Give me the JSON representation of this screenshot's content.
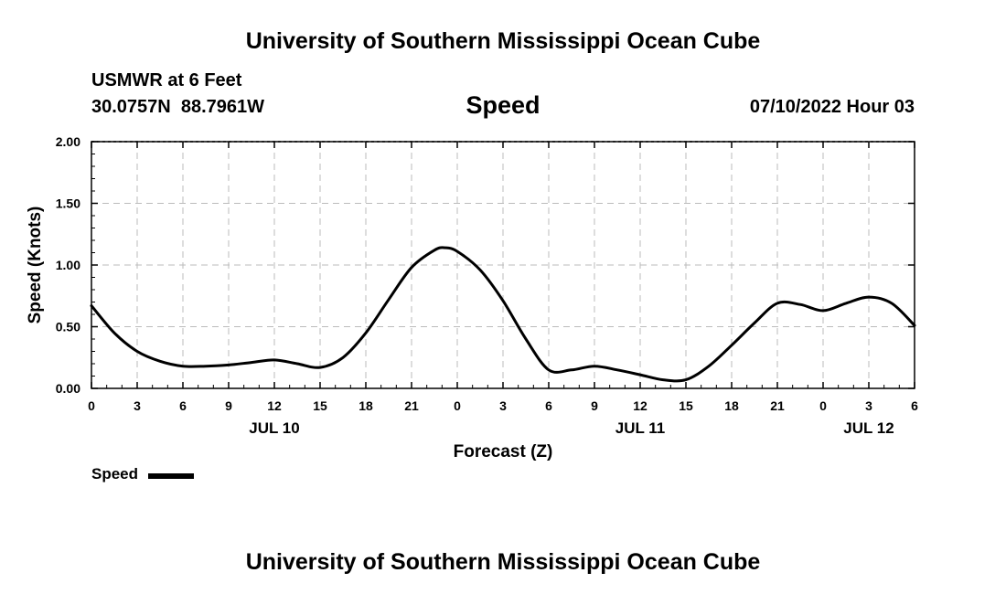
{
  "page": {
    "top_title": "University of Southern Mississippi Ocean Cube",
    "bottom_title": "University of Southern Mississippi Ocean Cube",
    "station": "USMWR at 6 Feet",
    "coords": "30.0757N  88.7961W",
    "datetime": "07/10/2022 Hour 03"
  },
  "chart_data": {
    "type": "line",
    "title": "Speed",
    "xlabel": "Forecast (Z)",
    "ylabel": "Speed (Knots)",
    "x_unit": "forecast hour from 2022-07-10 00Z",
    "xlim": [
      0,
      54
    ],
    "ylim": [
      0,
      2
    ],
    "y_ticks": [
      "0.00",
      "0.50",
      "1.00",
      "1.50",
      "2.00"
    ],
    "y_tick_values": [
      0,
      0.5,
      1,
      1.5,
      2
    ],
    "x_ticks": [
      "0",
      "3",
      "6",
      "9",
      "12",
      "15",
      "18",
      "21",
      "0",
      "3",
      "6",
      "9",
      "12",
      "15",
      "18",
      "21",
      "0",
      "3",
      "6"
    ],
    "x_tick_values": [
      0,
      3,
      6,
      9,
      12,
      15,
      18,
      21,
      24,
      27,
      30,
      33,
      36,
      39,
      42,
      45,
      48,
      51,
      54
    ],
    "date_labels": [
      {
        "label": "JUL 10",
        "x": 12
      },
      {
        "label": "JUL 11",
        "x": 36
      },
      {
        "label": "JUL 12",
        "x": 51
      }
    ],
    "grid": true,
    "legend": {
      "label": "Speed",
      "position": "bottom-left"
    },
    "series": [
      {
        "name": "Speed",
        "color": "#000000",
        "x": [
          0,
          1.5,
          3,
          4.5,
          6,
          7.5,
          9,
          10.5,
          12,
          13.5,
          15,
          16.5,
          18,
          19.5,
          21,
          22.5,
          23.2,
          24,
          25.5,
          27,
          28.5,
          30,
          31.5,
          33,
          34.5,
          36,
          37.5,
          39,
          40.5,
          42,
          43.5,
          45,
          46.5,
          48,
          49.5,
          51,
          52.5,
          54
        ],
        "values": [
          0.67,
          0.45,
          0.3,
          0.22,
          0.18,
          0.18,
          0.19,
          0.21,
          0.23,
          0.2,
          0.17,
          0.25,
          0.45,
          0.72,
          0.98,
          1.12,
          1.14,
          1.11,
          0.96,
          0.71,
          0.4,
          0.15,
          0.15,
          0.18,
          0.15,
          0.11,
          0.07,
          0.07,
          0.18,
          0.35,
          0.53,
          0.69,
          0.68,
          0.63,
          0.69,
          0.74,
          0.69,
          0.51
        ]
      }
    ]
  }
}
